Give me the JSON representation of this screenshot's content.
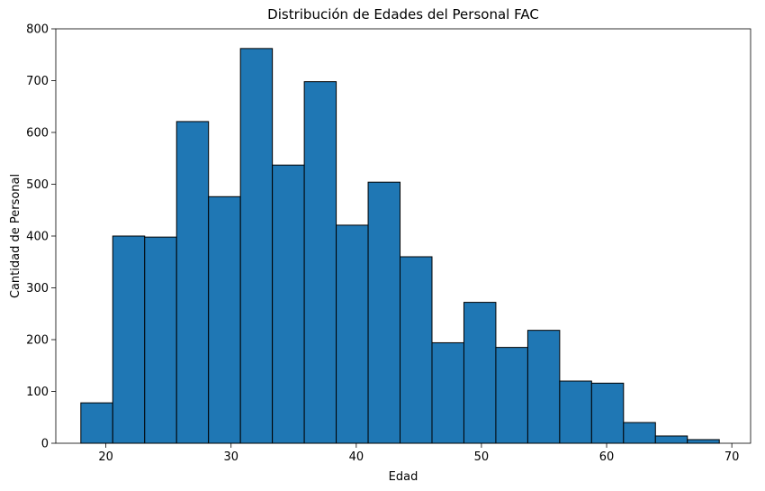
{
  "chart_data": {
    "type": "bar",
    "title": "Distribución de Edades del Personal FAC",
    "xlabel": "Edad",
    "ylabel": "Cantidad de Personal",
    "xlim": [
      16.0,
      71.5
    ],
    "ylim": [
      0,
      800
    ],
    "xticks": [
      20,
      30,
      40,
      50,
      60,
      70
    ],
    "yticks": [
      0,
      100,
      200,
      300,
      400,
      500,
      600,
      700,
      800
    ],
    "bar_color": "#1f77b4",
    "edge_color": "#000000",
    "grid": false,
    "bins": [
      {
        "x0": 18.0,
        "x1": 20.55,
        "value": 78
      },
      {
        "x0": 20.55,
        "x1": 23.1,
        "value": 400
      },
      {
        "x0": 23.1,
        "x1": 25.65,
        "value": 398
      },
      {
        "x0": 25.65,
        "x1": 28.2,
        "value": 621
      },
      {
        "x0": 28.2,
        "x1": 30.75,
        "value": 476
      },
      {
        "x0": 30.75,
        "x1": 33.3,
        "value": 762
      },
      {
        "x0": 33.3,
        "x1": 35.85,
        "value": 537
      },
      {
        "x0": 35.85,
        "x1": 38.4,
        "value": 698
      },
      {
        "x0": 38.4,
        "x1": 40.95,
        "value": 421
      },
      {
        "x0": 40.95,
        "x1": 43.5,
        "value": 504
      },
      {
        "x0": 43.5,
        "x1": 46.05,
        "value": 360
      },
      {
        "x0": 46.05,
        "x1": 48.6,
        "value": 194
      },
      {
        "x0": 48.6,
        "x1": 51.15,
        "value": 272
      },
      {
        "x0": 51.15,
        "x1": 53.7,
        "value": 185
      },
      {
        "x0": 53.7,
        "x1": 56.25,
        "value": 218
      },
      {
        "x0": 56.25,
        "x1": 58.8,
        "value": 120
      },
      {
        "x0": 58.8,
        "x1": 61.35,
        "value": 116
      },
      {
        "x0": 61.35,
        "x1": 63.9,
        "value": 40
      },
      {
        "x0": 63.9,
        "x1": 66.45,
        "value": 14
      },
      {
        "x0": 66.45,
        "x1": 69.0,
        "value": 7
      }
    ]
  }
}
